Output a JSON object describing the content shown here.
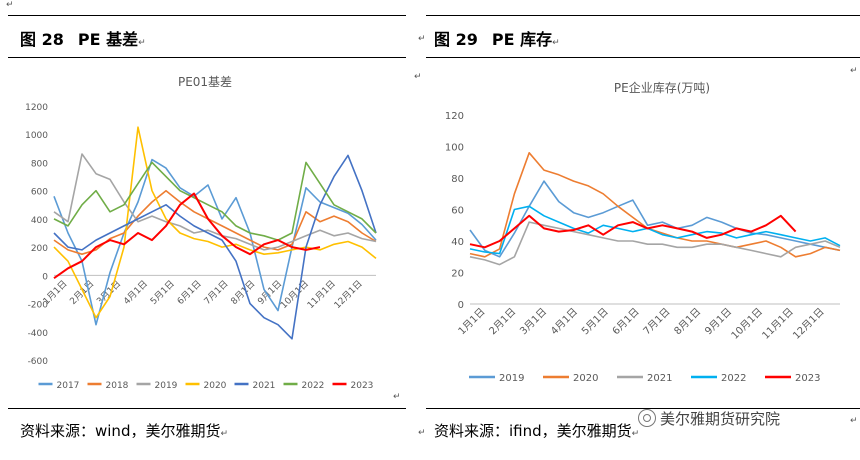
{
  "left": {
    "fig_num": "图 28",
    "fig_title": "PE 基差",
    "source": "资料来源：wind，美尔雅期货",
    "chart_data": {
      "type": "line",
      "title": "PE01基差",
      "ylim": [
        -600,
        1200
      ],
      "yticks": [
        -600,
        -400,
        -200,
        0,
        200,
        400,
        600,
        800,
        1000,
        1200
      ],
      "xticks": [
        "1月1日",
        "2月1日",
        "3月1日",
        "4月1日",
        "5月1日",
        "6月1日",
        "7月1日",
        "8月1日",
        "9月1日",
        "10月1日",
        "11月1日",
        "12月1日"
      ],
      "series": [
        {
          "name": "2017",
          "color": "#5b9bd5",
          "values": [
            560,
            300,
            100,
            -350,
            20,
            300,
            520,
            820,
            760,
            620,
            560,
            640,
            400,
            550,
            300,
            -100,
            -250,
            200,
            620,
            520,
            480,
            440,
            360,
            250
          ]
        },
        {
          "name": "2018",
          "color": "#ed7d31",
          "values": [
            250,
            180,
            150,
            180,
            260,
            300,
            420,
            520,
            600,
            520,
            450,
            400,
            350,
            300,
            250,
            200,
            180,
            220,
            450,
            380,
            420,
            380,
            300,
            240
          ]
        },
        {
          "name": "2019",
          "color": "#a5a5a5",
          "values": [
            450,
            380,
            860,
            720,
            680,
            520,
            380,
            420,
            380,
            350,
            300,
            320,
            280,
            260,
            220,
            180,
            200,
            240,
            280,
            320,
            280,
            300,
            260,
            240
          ]
        },
        {
          "name": "2020",
          "color": "#ffc000",
          "values": [
            200,
            100,
            -100,
            -300,
            -150,
            200,
            1050,
            600,
            400,
            300,
            260,
            240,
            200,
            220,
            180,
            150,
            160,
            180,
            200,
            180,
            220,
            240,
            200,
            120
          ]
        },
        {
          "name": "2021",
          "color": "#4472c4",
          "values": [
            300,
            200,
            180,
            250,
            300,
            350,
            400,
            450,
            500,
            420,
            350,
            300,
            250,
            100,
            -200,
            -300,
            -350,
            -450,
            200,
            500,
            700,
            850,
            600,
            300
          ]
        },
        {
          "name": "2022",
          "color": "#70ad47",
          "values": [
            400,
            350,
            500,
            600,
            450,
            500,
            650,
            800,
            700,
            600,
            550,
            500,
            450,
            350,
            300,
            280,
            250,
            300,
            800,
            650,
            500,
            450,
            400,
            300
          ]
        },
        {
          "name": "2023",
          "color": "#ff0000",
          "values": [
            -20,
            50,
            100,
            200,
            250,
            220,
            300,
            250,
            350,
            500,
            580,
            400,
            280,
            200,
            150,
            220,
            250,
            200,
            180,
            200
          ]
        }
      ]
    }
  },
  "right": {
    "fig_num": "图 29",
    "fig_title": "PE 库存",
    "source": "资料来源：ifind，美尔雅期货",
    "chart_data": {
      "type": "line",
      "title": "PE企业库存(万吨)",
      "ylim": [
        0,
        120
      ],
      "yticks": [
        0,
        20,
        40,
        60,
        80,
        100,
        120
      ],
      "xticks": [
        "1月1日",
        "2月1日",
        "3月1日",
        "4月1日",
        "5月1日",
        "6月1日",
        "7月1日",
        "8月1日",
        "9月1日",
        "10月1日",
        "11月1日",
        "12月1日"
      ],
      "series": [
        {
          "name": "2019",
          "color": "#5b9bd5",
          "values": [
            47,
            34,
            30,
            45,
            62,
            78,
            65,
            58,
            55,
            58,
            62,
            66,
            50,
            52,
            48,
            50,
            55,
            52,
            48,
            45,
            44,
            42,
            40,
            38,
            36,
            34
          ]
        },
        {
          "name": "2020",
          "color": "#ed7d31",
          "values": [
            32,
            30,
            35,
            70,
            96,
            85,
            82,
            78,
            75,
            70,
            62,
            55,
            48,
            45,
            42,
            40,
            40,
            38,
            36,
            38,
            40,
            36,
            30,
            32,
            36,
            34
          ]
        },
        {
          "name": "2021",
          "color": "#a5a5a5",
          "values": [
            30,
            28,
            25,
            30,
            52,
            50,
            48,
            46,
            44,
            42,
            40,
            40,
            38,
            38,
            36,
            36,
            38,
            38,
            36,
            34,
            32,
            30,
            36,
            38,
            40,
            36
          ]
        },
        {
          "name": "2022",
          "color": "#00b0f0",
          "values": [
            35,
            33,
            32,
            60,
            62,
            56,
            52,
            48,
            45,
            50,
            48,
            46,
            48,
            44,
            42,
            44,
            46,
            45,
            42,
            44,
            46,
            44,
            42,
            40,
            42,
            37
          ]
        },
        {
          "name": "2023",
          "color": "#ff0000",
          "values": [
            38,
            36,
            40,
            48,
            56,
            48,
            46,
            47,
            50,
            44,
            50,
            52,
            48,
            50,
            48,
            46,
            42,
            44,
            48,
            46,
            50,
            56,
            46
          ]
        }
      ]
    }
  },
  "watermark": {
    "text": "美尔雅期货研究院",
    "icon": "wechat-icon"
  }
}
